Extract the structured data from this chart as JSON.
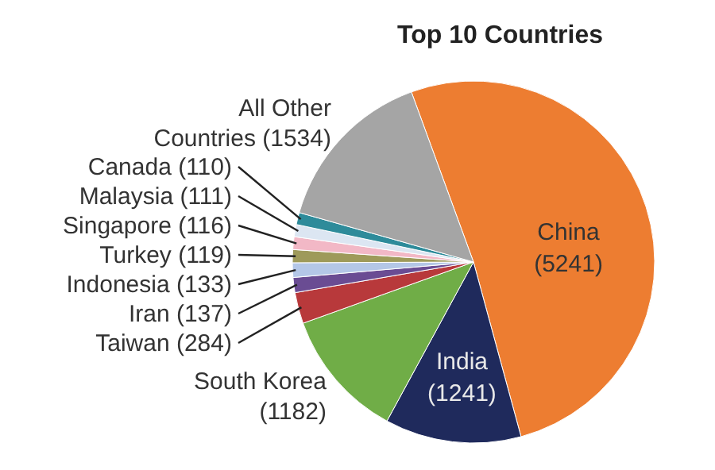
{
  "chart_data": {
    "type": "pie",
    "title": "Top 10 Countries",
    "categories": [
      "China",
      "India",
      "South Korea",
      "Taiwan",
      "Iran",
      "Indonesia",
      "Turkey",
      "Singapore",
      "Malaysia",
      "Canada",
      "All Other Countries"
    ],
    "values": [
      5241,
      1241,
      1182,
      284,
      137,
      133,
      119,
      116,
      111,
      110,
      1534
    ],
    "colors": [
      "#ed7d31",
      "#1f2a5c",
      "#70ad47",
      "#b8393b",
      "#6a4c93",
      "#b4c7e7",
      "#9e9a5a",
      "#f2b8c6",
      "#dce6f2",
      "#2e8b9a",
      "#a5a5a5"
    ],
    "value_labels": [
      "(5241)",
      "(1241)",
      "(1182)",
      "(284)",
      "(137)",
      "(133)",
      "(119)",
      "(116)",
      "(111)",
      "(110)",
      "(1534)"
    ]
  }
}
